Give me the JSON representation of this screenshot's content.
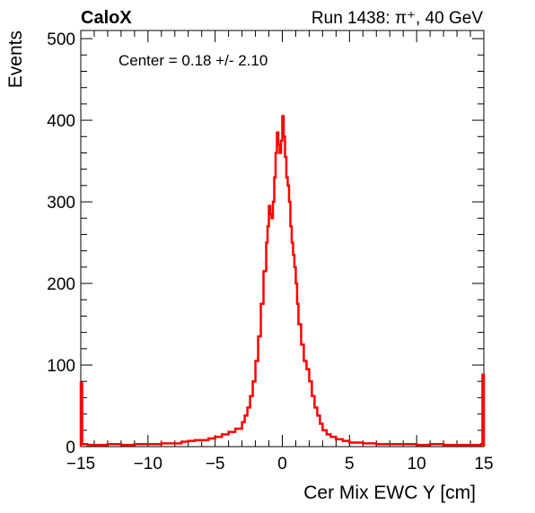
{
  "header": {
    "experiment": "CaloX",
    "run_info": "Run 1438: π⁺, 40 GeV"
  },
  "chart_data": {
    "type": "histogram",
    "xlabel": "Cer Mix EWC Y [cm]",
    "ylabel": "Events",
    "xlim": [
      -15,
      15
    ],
    "ylim": [
      0,
      510
    ],
    "xticks": [
      -15,
      -10,
      -5,
      0,
      5,
      10,
      15
    ],
    "xtick_labels": [
      "−15",
      "−10",
      "−5",
      "0",
      "5",
      "10",
      "15"
    ],
    "yticks": [
      0,
      100,
      200,
      300,
      400,
      500
    ],
    "ytick_labels": [
      "0",
      "100",
      "200",
      "300",
      "400",
      "500"
    ],
    "annotation": "Center = 0.18 +/- 2.10",
    "grid": false,
    "series": [
      {
        "color": "#ff0000",
        "bin_width": 0.1,
        "x": [
          -15.0,
          -14.9,
          -14.5,
          -14.0,
          -13.0,
          -12.0,
          -11.0,
          -10.0,
          -9.0,
          -8.0,
          -7.5,
          -7.0,
          -6.5,
          -6.0,
          -5.5,
          -5.0,
          -4.5,
          -4.0,
          -3.5,
          -3.0,
          -2.8,
          -2.6,
          -2.4,
          -2.2,
          -2.0,
          -1.8,
          -1.6,
          -1.4,
          -1.2,
          -1.1,
          -1.0,
          -0.9,
          -0.8,
          -0.7,
          -0.6,
          -0.5,
          -0.4,
          -0.3,
          -0.2,
          -0.1,
          0.0,
          0.1,
          0.2,
          0.3,
          0.4,
          0.5,
          0.6,
          0.7,
          0.8,
          0.9,
          1.0,
          1.1,
          1.2,
          1.4,
          1.6,
          1.8,
          2.0,
          2.2,
          2.4,
          2.6,
          2.8,
          3.0,
          3.3,
          3.6,
          4.0,
          4.5,
          5.0,
          5.5,
          6.0,
          7.0,
          8.0,
          9.0,
          10.0,
          11.0,
          12.0,
          13.0,
          14.0,
          14.8,
          14.9
        ],
        "y": [
          78,
          3,
          2,
          2,
          3,
          2,
          3,
          3,
          4,
          4,
          6,
          7,
          8,
          8,
          10,
          12,
          15,
          18,
          22,
          30,
          38,
          48,
          62,
          80,
          105,
          135,
          175,
          215,
          250,
          270,
          295,
          285,
          280,
          300,
          330,
          360,
          385,
          370,
          360,
          375,
          405,
          380,
          355,
          330,
          320,
          300,
          270,
          250,
          235,
          220,
          200,
          175,
          150,
          125,
          105,
          95,
          80,
          62,
          48,
          38,
          28,
          20,
          15,
          12,
          9,
          7,
          5,
          5,
          4,
          3,
          3,
          3,
          2,
          3,
          2,
          2,
          2,
          3,
          88
        ]
      }
    ]
  }
}
